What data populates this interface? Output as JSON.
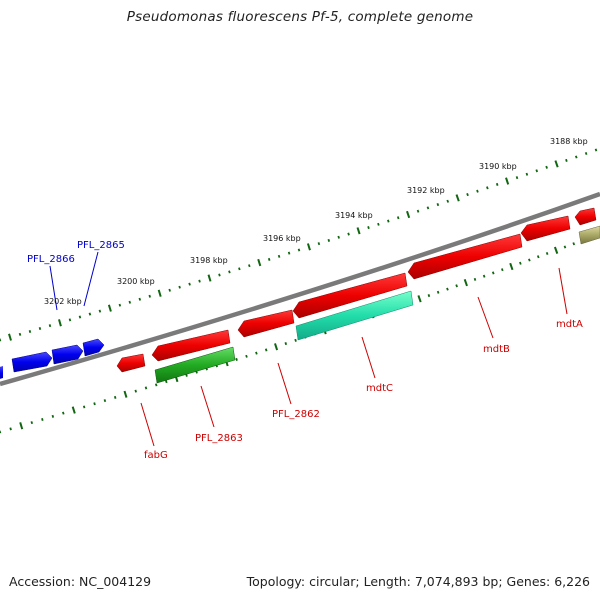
{
  "title": "Pseudomonas fluorescens Pf-5, complete genome",
  "footer": {
    "accession": "Accession: NC_004129",
    "topology": "Topology: circular; Length: 7,074,893 bp; Genes: 6,226"
  },
  "ticks": [
    {
      "label": "3188 kbp",
      "kbp": 3188
    },
    {
      "label": "3190 kbp",
      "kbp": 3190
    },
    {
      "label": "3192 kbp",
      "kbp": 3192
    },
    {
      "label": "3194 kbp",
      "kbp": 3194
    },
    {
      "label": "3196 kbp",
      "kbp": 3196
    },
    {
      "label": "3198 kbp",
      "kbp": 3198
    },
    {
      "label": "3200 kbp",
      "kbp": 3200
    },
    {
      "label": "3202 kbp",
      "kbp": 3202
    }
  ],
  "genes": [
    {
      "name": "mdtA",
      "color": "#cc0000",
      "strand": "reverse"
    },
    {
      "name": "mdtB",
      "color": "#cc0000",
      "strand": "reverse"
    },
    {
      "name": "mdtC",
      "color": "#cc0000",
      "strand": "reverse"
    },
    {
      "name": "PFL_2862",
      "color": "#cc0000",
      "strand": "reverse"
    },
    {
      "name": "PFL_2863",
      "color": "#cc0000",
      "strand": "reverse"
    },
    {
      "name": "fabG",
      "color": "#cc0000",
      "strand": "reverse"
    },
    {
      "name": "PFL_2865",
      "color": "#0000cc",
      "strand": "forward"
    },
    {
      "name": "PFL_2866",
      "color": "#0000cc",
      "strand": "forward"
    }
  ],
  "colors": {
    "backbone": "#7a7a7a",
    "rna_gene": "#cc0000",
    "protein_gene": "#0000cc",
    "feature_green": "#22aa22",
    "feature_teal": "#22ddaa",
    "feature_olive": "#aaa866",
    "tick": "#116611"
  }
}
